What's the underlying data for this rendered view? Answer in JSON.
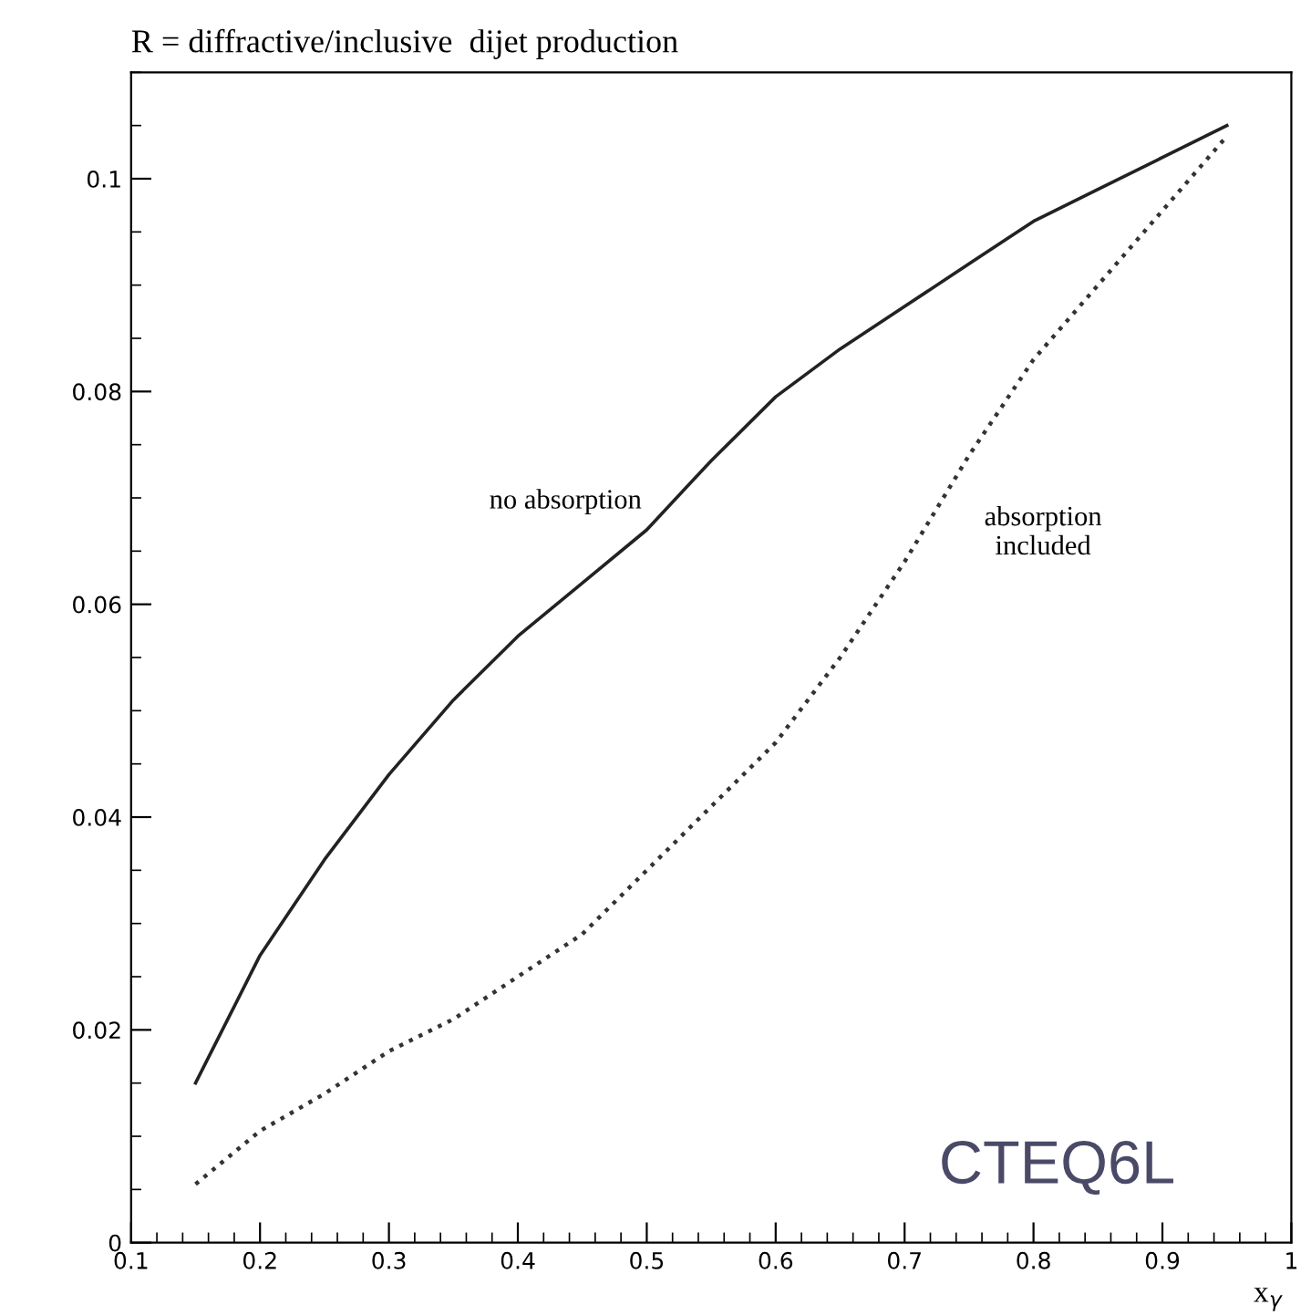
{
  "chart_data": {
    "type": "line",
    "title": "R = diffractive/inclusive  dijet production",
    "xlabel": "x$_{γ}$",
    "xlim": [
      0.1,
      1
    ],
    "xticks": [
      0.1,
      0.2,
      0.3,
      0.4,
      0.5,
      0.6,
      0.7,
      0.8,
      0.9,
      1
    ],
    "ylim": [
      0,
      0.11
    ],
    "yticks": [
      0,
      0.02,
      0.04,
      0.06,
      0.08,
      0.1
    ],
    "series": [
      {
        "color": "#222222",
        "line_style": "solid",
        "x": [
          0.15,
          0.175,
          0.2,
          0.25,
          0.3,
          0.35,
          0.4,
          0.45,
          0.5,
          0.55,
          0.6,
          0.65,
          0.7,
          0.75,
          0.8,
          0.85,
          0.9,
          0.95
        ],
        "values": [
          0.015,
          0.021,
          0.027,
          0.036,
          0.044,
          0.051,
          0.057,
          0.062,
          0.067,
          0.0735,
          0.0795,
          0.084,
          0.088,
          0.092,
          0.096,
          0.099,
          0.102,
          0.105
        ]
      },
      {
        "color": "#333333",
        "line_style": "dotted",
        "x": [
          0.15,
          0.2,
          0.25,
          0.3,
          0.35,
          0.4,
          0.45,
          0.5,
          0.55,
          0.6,
          0.65,
          0.7,
          0.75,
          0.8,
          0.85,
          0.9,
          0.95
        ],
        "values": [
          0.0055,
          0.0105,
          0.014,
          0.018,
          0.021,
          0.025,
          0.029,
          0.035,
          0.041,
          0.047,
          0.055,
          0.064,
          0.074,
          0.083,
          0.09,
          0.097,
          0.104
        ]
      }
    ],
    "annotations": [
      {
        "text": "no absorption",
        "x": 0.5,
        "y": 0.0675
      },
      {
        "text": "absorption\nincluded",
        "x": 0.75,
        "y": 0.074
      },
      "CTEQ6L"
    ],
    "grid": false,
    "legend": false,
    "marker": "none"
  }
}
